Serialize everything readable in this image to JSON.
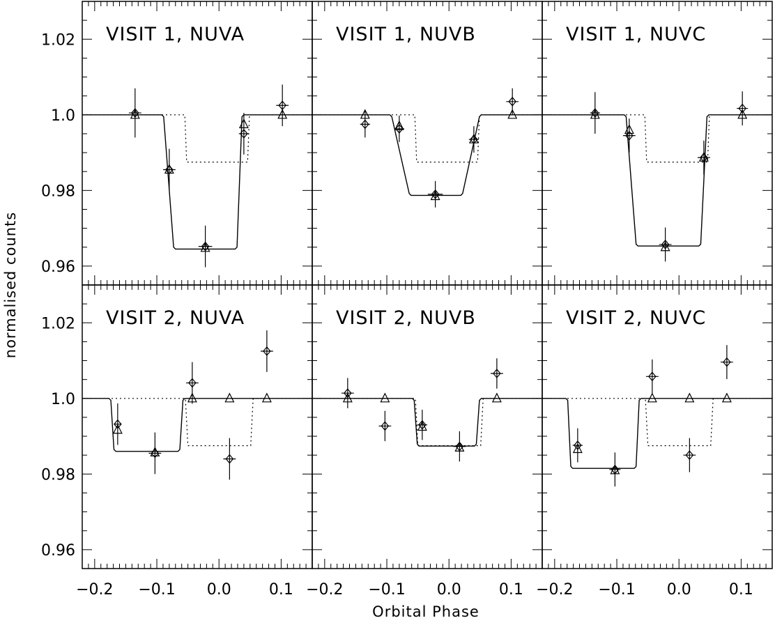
{
  "chart_data": {
    "type": "scatter",
    "xlabel": "Orbital Phase",
    "ylabel": "normalised counts",
    "xlim": [
      -0.22,
      0.15
    ],
    "ylim": [
      0.955,
      1.03
    ],
    "xticks": [
      -0.2,
      -0.1,
      0.0,
      0.1
    ],
    "xtick_labels": [
      "−0.2",
      "−0.1",
      "0.0",
      "0.1"
    ],
    "yticks": [
      0.96,
      0.98,
      1.0,
      1.02
    ],
    "ytick_labels": [
      "0.96",
      "0.98",
      "1.0",
      "1.02"
    ],
    "grid": false,
    "layout": "2 rows x 3 columns, shared axes",
    "panels": [
      {
        "label": "VISIT 1, NUVA",
        "observed": [
          {
            "x": -0.135,
            "y": 1.0005,
            "xerr": 0.01,
            "yerr": 0.0065
          },
          {
            "x": -0.08,
            "y": 0.9855,
            "xerr": 0.01,
            "yerr": 0.0055
          },
          {
            "x": -0.022,
            "y": 0.9652,
            "xerr": 0.011,
            "yerr": 0.0055
          },
          {
            "x": 0.04,
            "y": 0.995,
            "xerr": 0.008,
            "yerr": 0.0055
          },
          {
            "x": 0.102,
            "y": 1.0025,
            "xerr": 0.01,
            "yerr": 0.0055
          }
        ],
        "model": [
          {
            "x": -0.135,
            "y": 1.0
          },
          {
            "x": -0.08,
            "y": 0.9855
          },
          {
            "x": -0.022,
            "y": 0.9648
          },
          {
            "x": 0.04,
            "y": 0.9975
          },
          {
            "x": 0.102,
            "y": 1.0
          }
        ],
        "transit_depth": 0.9645,
        "ingress_start": -0.09,
        "ingress_end": -0.072,
        "egress_start": 0.028,
        "egress_end": 0.038,
        "reference_depth": 0.9875,
        "reference_ingress_start": -0.055,
        "reference_ingress_end": -0.052,
        "reference_egress_start": 0.046,
        "reference_egress_end": 0.049
      },
      {
        "label": "VISIT 1, NUVB",
        "observed": [
          {
            "x": -0.135,
            "y": 0.9975,
            "xerr": 0.008,
            "yerr": 0.0035
          },
          {
            "x": -0.08,
            "y": 0.9963,
            "xerr": 0.008,
            "yerr": 0.0035
          },
          {
            "x": -0.022,
            "y": 0.979,
            "xerr": 0.012,
            "yerr": 0.0035
          },
          {
            "x": 0.04,
            "y": 0.9935,
            "xerr": 0.008,
            "yerr": 0.0035
          },
          {
            "x": 0.102,
            "y": 1.0035,
            "xerr": 0.01,
            "yerr": 0.0035
          }
        ],
        "model": [
          {
            "x": -0.135,
            "y": 1.0
          },
          {
            "x": -0.08,
            "y": 0.997
          },
          {
            "x": -0.022,
            "y": 0.9785
          },
          {
            "x": 0.04,
            "y": 0.9935
          },
          {
            "x": 0.102,
            "y": 1.0
          }
        ],
        "transit_depth": 0.9787,
        "ingress_start": -0.093,
        "ingress_end": -0.063,
        "egress_start": 0.021,
        "egress_end": 0.05,
        "reference_depth": 0.9875,
        "reference_ingress_start": -0.055,
        "reference_ingress_end": -0.052,
        "reference_egress_start": 0.046,
        "reference_egress_end": 0.049
      },
      {
        "label": "VISIT 1, NUVC",
        "observed": [
          {
            "x": -0.135,
            "y": 1.0005,
            "xerr": 0.008,
            "yerr": 0.0055
          },
          {
            "x": -0.08,
            "y": 0.9945,
            "xerr": 0.01,
            "yerr": 0.0045
          },
          {
            "x": -0.022,
            "y": 0.9657,
            "xerr": 0.01,
            "yerr": 0.0045
          },
          {
            "x": 0.04,
            "y": 0.9887,
            "xerr": 0.01,
            "yerr": 0.0045
          },
          {
            "x": 0.102,
            "y": 1.0017,
            "xerr": 0.009,
            "yerr": 0.0045
          }
        ],
        "model": [
          {
            "x": -0.135,
            "y": 1.0
          },
          {
            "x": -0.08,
            "y": 0.996
          },
          {
            "x": -0.022,
            "y": 0.965
          },
          {
            "x": 0.04,
            "y": 0.9887
          },
          {
            "x": 0.102,
            "y": 1.0
          }
        ],
        "transit_depth": 0.9653,
        "ingress_start": -0.086,
        "ingress_end": -0.068,
        "egress_start": 0.034,
        "egress_end": 0.046,
        "reference_depth": 0.9875,
        "reference_ingress_start": -0.055,
        "reference_ingress_end": -0.052,
        "reference_egress_start": 0.046,
        "reference_egress_end": 0.049
      },
      {
        "label": "VISIT 2, NUVA",
        "observed": [
          {
            "x": -0.163,
            "y": 0.9932,
            "xerr": 0.006,
            "yerr": 0.0055
          },
          {
            "x": -0.103,
            "y": 0.9855,
            "xerr": 0.01,
            "yerr": 0.0055
          },
          {
            "x": -0.043,
            "y": 1.0041,
            "xerr": 0.01,
            "yerr": 0.0055
          },
          {
            "x": 0.017,
            "y": 0.984,
            "xerr": 0.01,
            "yerr": 0.0055
          },
          {
            "x": 0.077,
            "y": 1.0125,
            "xerr": 0.01,
            "yerr": 0.0055
          }
        ],
        "model": [
          {
            "x": -0.163,
            "y": 0.9917
          },
          {
            "x": -0.103,
            "y": 0.9857
          },
          {
            "x": -0.043,
            "y": 1.0
          },
          {
            "x": 0.017,
            "y": 1.0
          },
          {
            "x": 0.077,
            "y": 1.0
          }
        ],
        "transit_depth": 0.986,
        "ingress_start": -0.175,
        "ingress_end": -0.168,
        "egress_start": -0.064,
        "egress_end": -0.057,
        "reference_depth": 0.9875,
        "reference_ingress_start": -0.054,
        "reference_ingress_end": -0.05,
        "reference_egress_start": 0.051,
        "reference_egress_end": 0.055
      },
      {
        "label": "VISIT 2, NUVB",
        "observed": [
          {
            "x": -0.163,
            "y": 1.0014,
            "xerr": 0.01,
            "yerr": 0.004
          },
          {
            "x": -0.103,
            "y": 0.9927,
            "xerr": 0.01,
            "yerr": 0.004
          },
          {
            "x": -0.043,
            "y": 0.993,
            "xerr": 0.008,
            "yerr": 0.004
          },
          {
            "x": 0.017,
            "y": 0.9873,
            "xerr": 0.01,
            "yerr": 0.004
          },
          {
            "x": 0.077,
            "y": 1.0066,
            "xerr": 0.01,
            "yerr": 0.004
          }
        ],
        "model": [
          {
            "x": -0.163,
            "y": 1.0
          },
          {
            "x": -0.103,
            "y": 1.0
          },
          {
            "x": -0.043,
            "y": 0.9925
          },
          {
            "x": 0.017,
            "y": 0.987
          },
          {
            "x": 0.077,
            "y": 1.0
          }
        ],
        "transit_depth": 0.9874,
        "ingress_start": -0.057,
        "ingress_end": -0.05,
        "egress_start": 0.043,
        "egress_end": 0.05,
        "reference_depth": 0.9875,
        "reference_ingress_start": -0.054,
        "reference_ingress_end": -0.05,
        "reference_egress_start": 0.051,
        "reference_egress_end": 0.055
      },
      {
        "label": "VISIT 2, NUVC",
        "observed": [
          {
            "x": -0.163,
            "y": 0.9876,
            "xerr": 0.008,
            "yerr": 0.0045
          },
          {
            "x": -0.103,
            "y": 0.9812,
            "xerr": 0.009,
            "yerr": 0.0045
          },
          {
            "x": -0.043,
            "y": 1.0058,
            "xerr": 0.01,
            "yerr": 0.0045
          },
          {
            "x": 0.017,
            "y": 0.985,
            "xerr": 0.01,
            "yerr": 0.0045
          },
          {
            "x": 0.077,
            "y": 1.0096,
            "xerr": 0.01,
            "yerr": 0.0045
          }
        ],
        "model": [
          {
            "x": -0.163,
            "y": 0.9866
          },
          {
            "x": -0.103,
            "y": 0.981
          },
          {
            "x": -0.043,
            "y": 1.0
          },
          {
            "x": 0.017,
            "y": 1.0
          },
          {
            "x": 0.077,
            "y": 1.0
          }
        ],
        "transit_depth": 0.9815,
        "ingress_start": -0.18,
        "ingress_end": -0.173,
        "egress_start": -0.07,
        "egress_end": -0.063,
        "reference_depth": 0.9875,
        "reference_ingress_start": -0.054,
        "reference_ingress_end": -0.05,
        "reference_egress_start": 0.051,
        "reference_egress_end": 0.055
      }
    ]
  }
}
